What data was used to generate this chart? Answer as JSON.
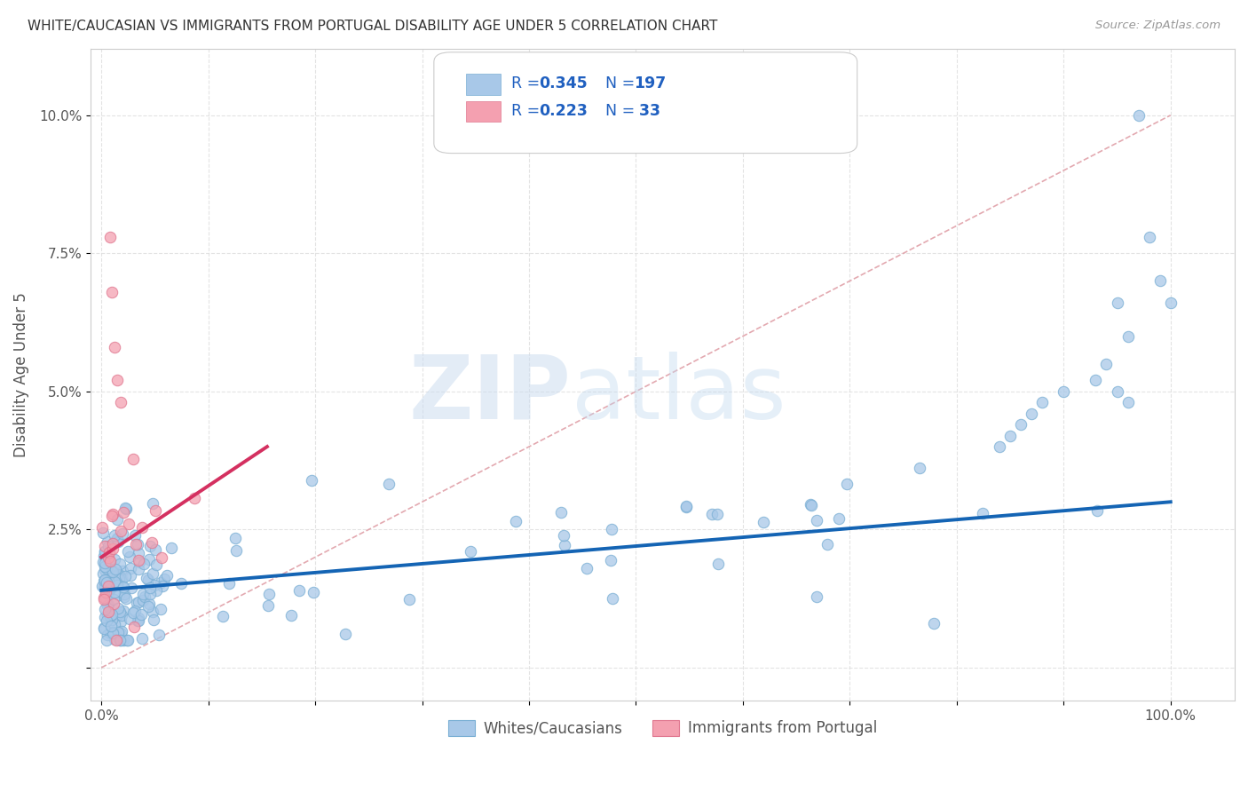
{
  "title": "WHITE/CAUCASIAN VS IMMIGRANTS FROM PORTUGAL DISABILITY AGE UNDER 5 CORRELATION CHART",
  "source": "Source: ZipAtlas.com",
  "ylabel": "Disability Age Under 5",
  "blue_R": 0.345,
  "blue_N": 197,
  "pink_R": 0.223,
  "pink_N": 33,
  "blue_color": "#a8c8e8",
  "blue_edge_color": "#7aafd4",
  "pink_color": "#f4a0b0",
  "pink_edge_color": "#e07890",
  "blue_line_color": "#1464b4",
  "pink_line_color": "#d43060",
  "diag_line_color": "#e0a0a8",
  "legend_text_color": "#2060c0",
  "xlim": [
    -0.01,
    1.06
  ],
  "ylim": [
    -0.006,
    0.112
  ],
  "blue_trend_x0": 0.0,
  "blue_trend_y0": 0.014,
  "blue_trend_x1": 1.0,
  "blue_trend_y1": 0.03,
  "pink_trend_x0": 0.0,
  "pink_trend_y0": 0.02,
  "pink_trend_x1": 0.155,
  "pink_trend_y1": 0.04,
  "legend_label_blue": "Whites/Caucasians",
  "legend_label_pink": "Immigrants from Portugal"
}
